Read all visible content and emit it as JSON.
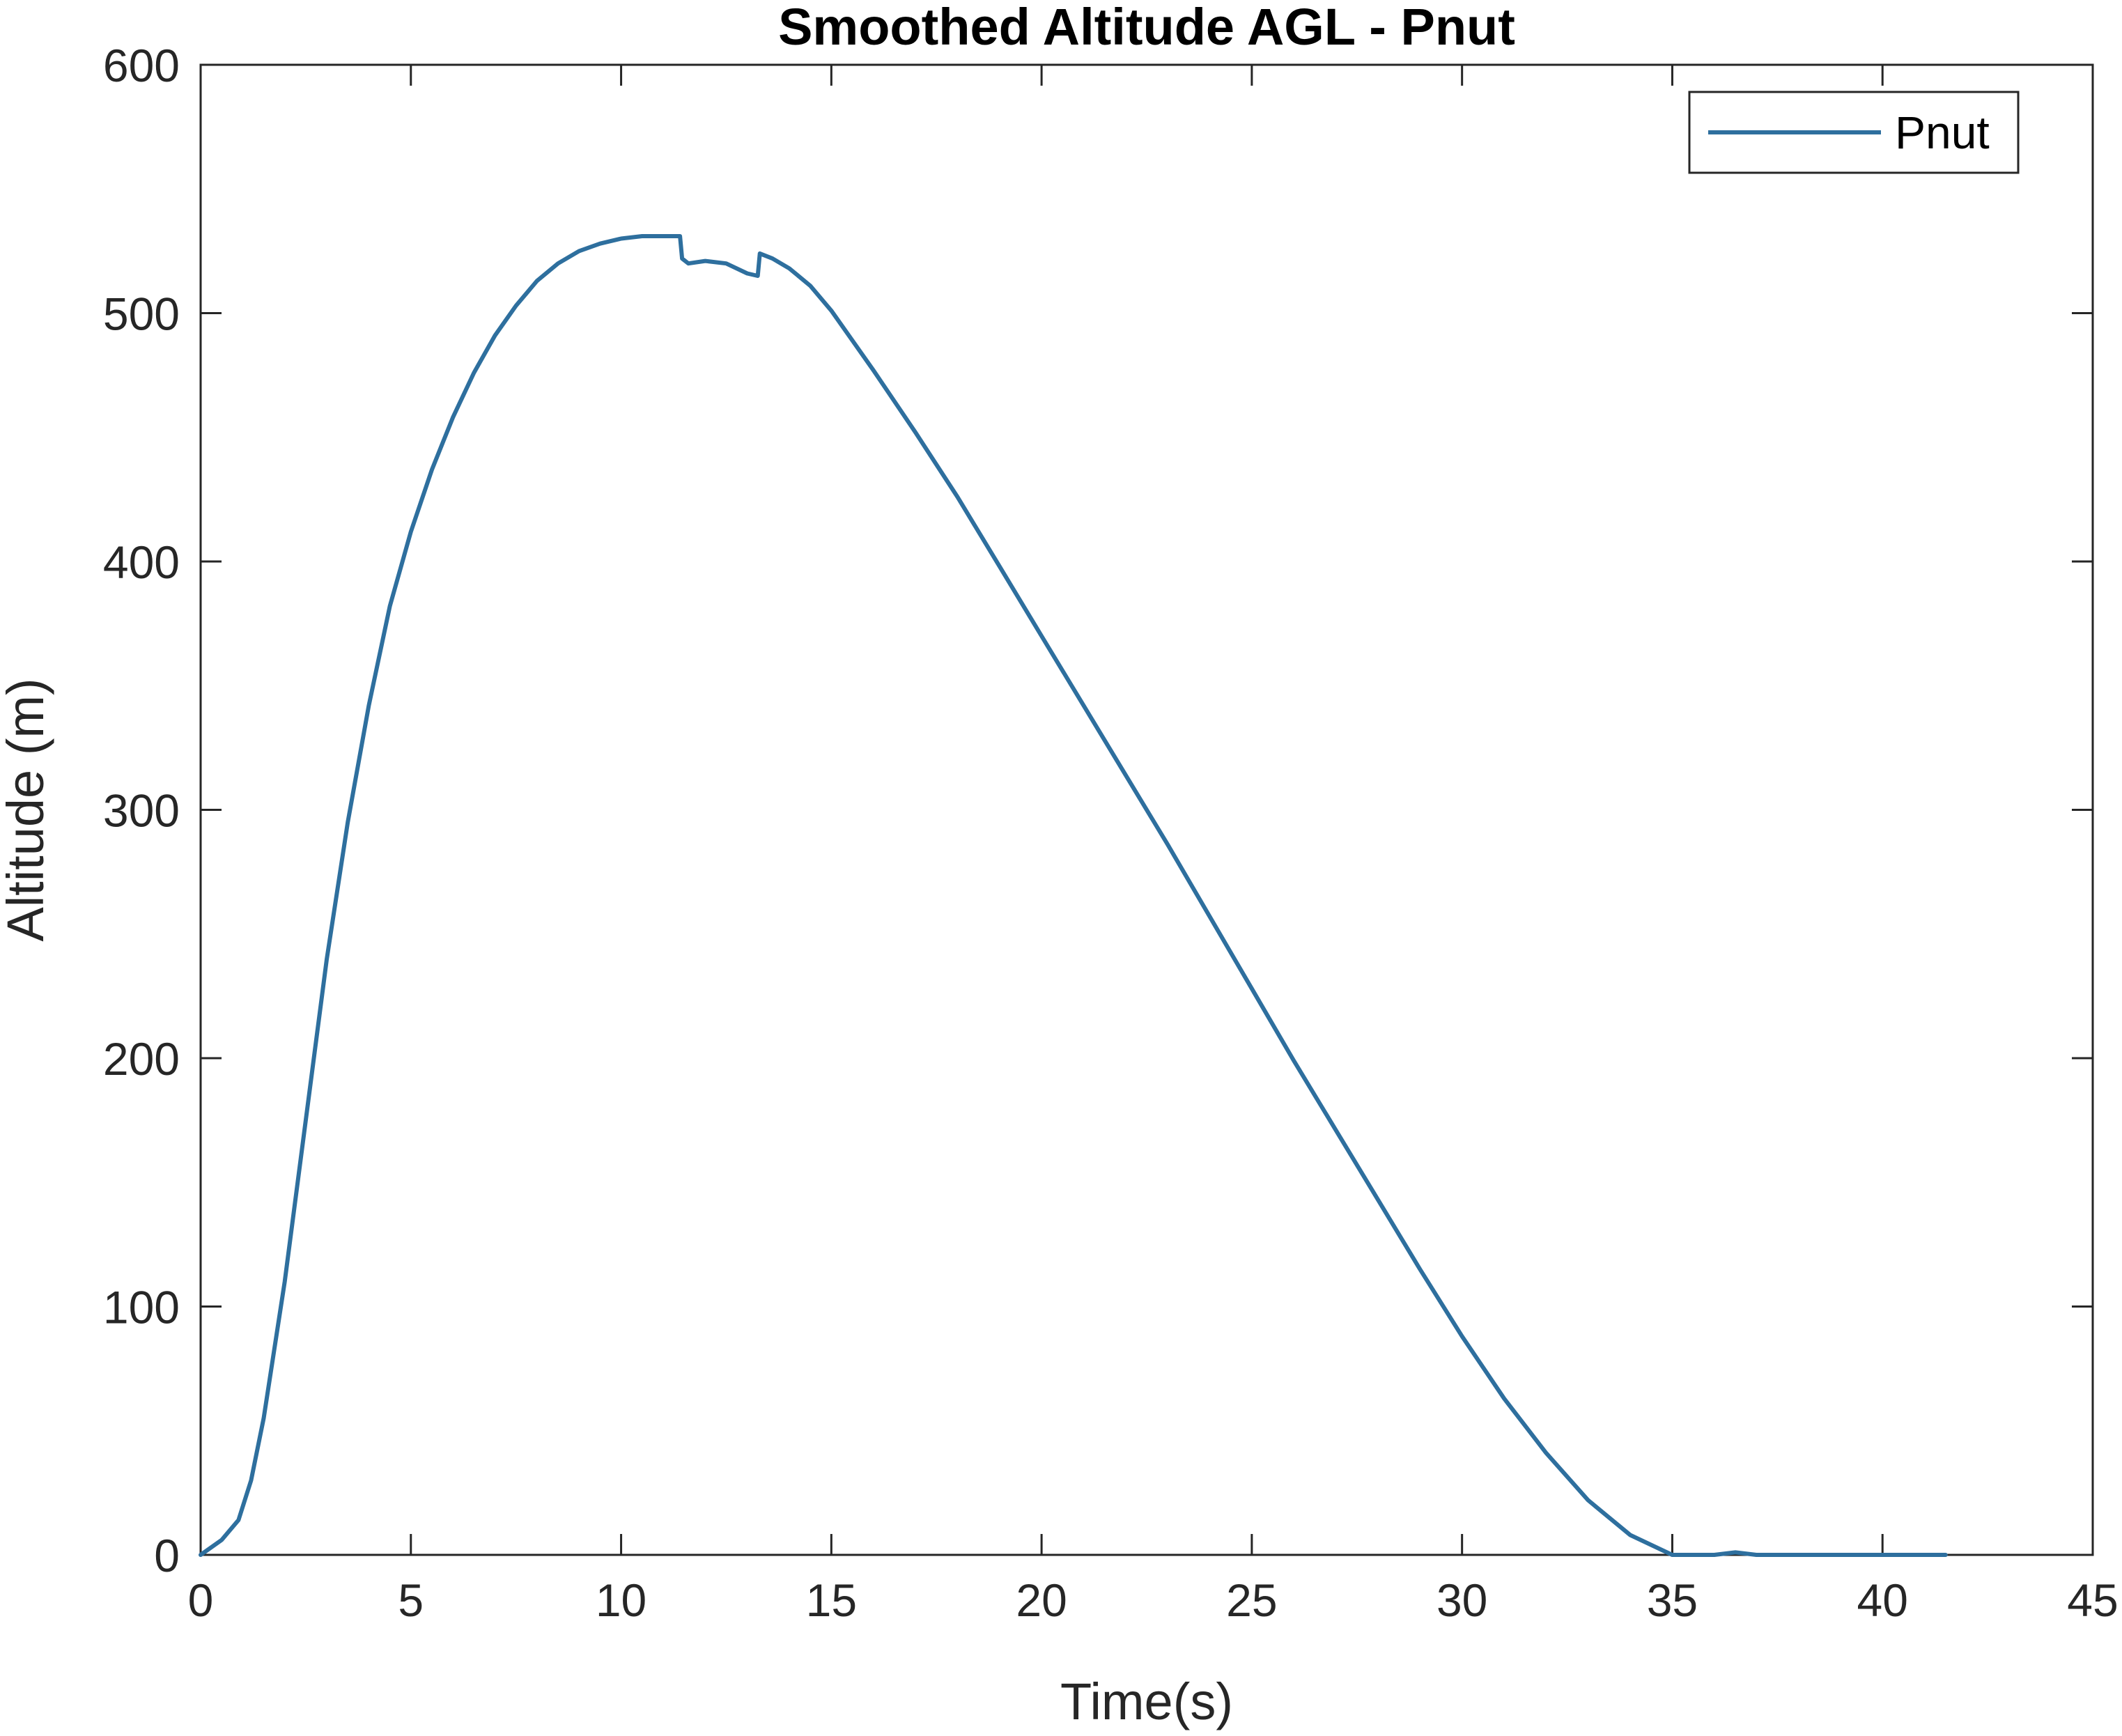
{
  "chart_data": {
    "type": "line",
    "title": "Smoothed Altitude AGL - Pnut",
    "xlabel": "Time(s)",
    "ylabel": "Altitude (m)",
    "xlim": [
      0,
      45
    ],
    "ylim": [
      0,
      600
    ],
    "xticks": [
      0,
      5,
      10,
      15,
      20,
      25,
      30,
      35,
      40,
      45
    ],
    "yticks": [
      0,
      100,
      200,
      300,
      400,
      500,
      600
    ],
    "grid": false,
    "legend": {
      "placement": "top-right",
      "entries": [
        "Pnut"
      ]
    },
    "series": [
      {
        "name": "Pnut",
        "color": "#2E6F9E",
        "x": [
          0,
          0.5,
          0.9,
          1.2,
          1.5,
          2.0,
          2.5,
          3.0,
          3.5,
          4.0,
          4.5,
          5.0,
          5.5,
          6.0,
          6.5,
          7.0,
          7.5,
          8.0,
          8.5,
          9.0,
          9.5,
          10.0,
          10.5,
          11.0,
          11.4,
          11.45,
          11.6,
          12.0,
          12.5,
          13.0,
          13.25,
          13.3,
          13.6,
          14.0,
          14.5,
          15.0,
          15.5,
          16.0,
          17.0,
          18.0,
          19.0,
          20.0,
          21.0,
          22.0,
          23.0,
          24.0,
          25.0,
          26.0,
          27.0,
          28.0,
          29.0,
          30.0,
          31.0,
          32.0,
          33.0,
          34.0,
          35.0,
          35.5,
          36.0,
          36.5,
          37.0,
          37.5,
          38.0,
          39.0,
          40.0,
          41.0,
          41.5
        ],
        "y": [
          0,
          6,
          14,
          30,
          55,
          110,
          175,
          240,
          295,
          342,
          382,
          412,
          437,
          458,
          476,
          491,
          503,
          513,
          520,
          525,
          528,
          530,
          531,
          531,
          531,
          522,
          520,
          521,
          520,
          516,
          515,
          524,
          522,
          518,
          511,
          501,
          489,
          477,
          452,
          426,
          398,
          370,
          342,
          314,
          286,
          257,
          228,
          199,
          171,
          143,
          115,
          88,
          63,
          41,
          22,
          8,
          0,
          0,
          0,
          1,
          0,
          0,
          0,
          0,
          0,
          0,
          0
        ]
      }
    ]
  }
}
